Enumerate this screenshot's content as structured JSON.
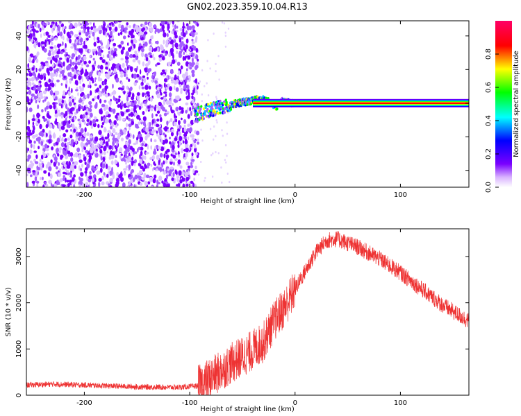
{
  "figure": {
    "title": "GN02.2023.359.10.04.R13"
  },
  "chart_data": [
    {
      "type": "heatmap",
      "xlabel": "Height of straight line (km)",
      "ylabel": "Frequency (Hz)",
      "xlim": [
        -255,
        165
      ],
      "ylim": [
        -50,
        49
      ],
      "xticks": [
        -200,
        -100,
        0,
        100
      ],
      "yticks": [
        -40,
        -20,
        0,
        20,
        40
      ],
      "colorbar": {
        "label": "Normalized spectral amplitude",
        "range": [
          0,
          1
        ],
        "ticks": [
          "0.0",
          "0.2",
          "0.4",
          "0.6",
          "0.8"
        ],
        "colormap": [
          "#ffffff",
          "#7a00ff",
          "#0000ff",
          "#00ffff",
          "#00ff00",
          "#ffff00",
          "#ff0000",
          "#ff0066"
        ]
      },
      "noise_region_x": [
        -255,
        -92
      ],
      "signal_track": {
        "x": [
          -95,
          -85,
          -75,
          -65,
          -55,
          -45,
          -38,
          -30,
          -22,
          -18,
          -12,
          -5,
          0,
          50,
          100,
          165
        ],
        "frequency": [
          -7,
          -5,
          -3,
          -2,
          0,
          1,
          2,
          2,
          0,
          -2,
          1,
          0,
          0,
          0,
          0,
          0
        ]
      }
    },
    {
      "type": "line",
      "xlabel": "Height of straight line (km)",
      "ylabel": "SNR (10 * v/v)",
      "xlim": [
        -255,
        165
      ],
      "ylim": [
        0,
        3600
      ],
      "xticks": [
        -200,
        -100,
        0,
        100
      ],
      "yticks": [
        0,
        1000,
        2000,
        3000
      ],
      "color": "#ee3333",
      "x": [
        -255,
        -230,
        -200,
        -150,
        -110,
        -92,
        -85,
        -75,
        -60,
        -45,
        -30,
        -20,
        -10,
        0,
        10,
        20,
        30,
        40,
        60,
        80,
        100,
        120,
        140,
        165
      ],
      "y": [
        220,
        240,
        220,
        180,
        170,
        200,
        300,
        450,
        700,
        900,
        1150,
        1600,
        1900,
        2300,
        2700,
        3100,
        3350,
        3380,
        3200,
        2950,
        2650,
        2300,
        1950,
        1600
      ]
    }
  ]
}
